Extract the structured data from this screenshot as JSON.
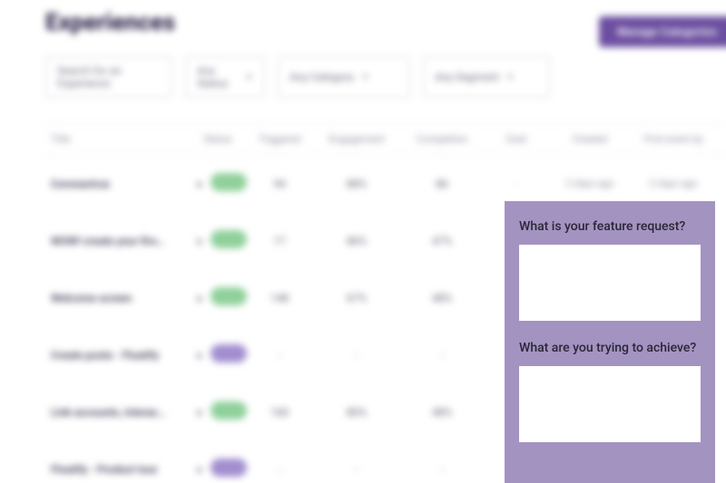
{
  "page": {
    "title": "Experiences"
  },
  "buttons": {
    "manage": "Manage Categories"
  },
  "filters": {
    "search": "Search for an Experience",
    "status": "Any Status",
    "category": "Any Category",
    "segment": "Any Segment"
  },
  "columns": {
    "title": "Title",
    "status": "Status",
    "triggered": "Triggered",
    "engagement": "Engagement",
    "completion": "Completion",
    "goal": "Goal",
    "created": "Created",
    "lastEvent": "First event by"
  },
  "rows": [
    {
      "title": "Coronavirus",
      "pill": "live",
      "triggered": "94",
      "engagement": "88%",
      "completion": "86",
      "goal": "-",
      "created": "2 days ago",
      "last": "2 days ago"
    },
    {
      "title": "WOW! create your firs…",
      "pill": "live",
      "triggered": "17",
      "engagement": "86%",
      "completion": "47%",
      "goal": "",
      "created": "",
      "last": ""
    },
    {
      "title": "Welcome screen",
      "pill": "live",
      "triggered": "148",
      "engagement": "67%",
      "completion": "48%",
      "goal": "",
      "created": "",
      "last": ""
    },
    {
      "title": "Create posts - Floatify",
      "pill": "draft",
      "triggered": "-",
      "engagement": "-",
      "completion": "-",
      "goal": "",
      "created": "",
      "last": ""
    },
    {
      "title": "Link accounts, interac…",
      "pill": "live",
      "triggered": "160",
      "engagement": "80%",
      "completion": "48%",
      "goal": "",
      "created": "",
      "last": ""
    },
    {
      "title": "Floatify - Product tour",
      "pill": "draft",
      "triggered": "-",
      "engagement": "-",
      "completion": "-",
      "goal": "",
      "created": "",
      "last": ""
    }
  ],
  "widget": {
    "q1": "What is your feature request?",
    "q2": "What are you trying to achieve?"
  },
  "colors": {
    "accent": "#6b4ea0",
    "widget_bg": "#a393c1",
    "pill_live": "#8fd09a",
    "pill_draft": "#a28dcf"
  }
}
